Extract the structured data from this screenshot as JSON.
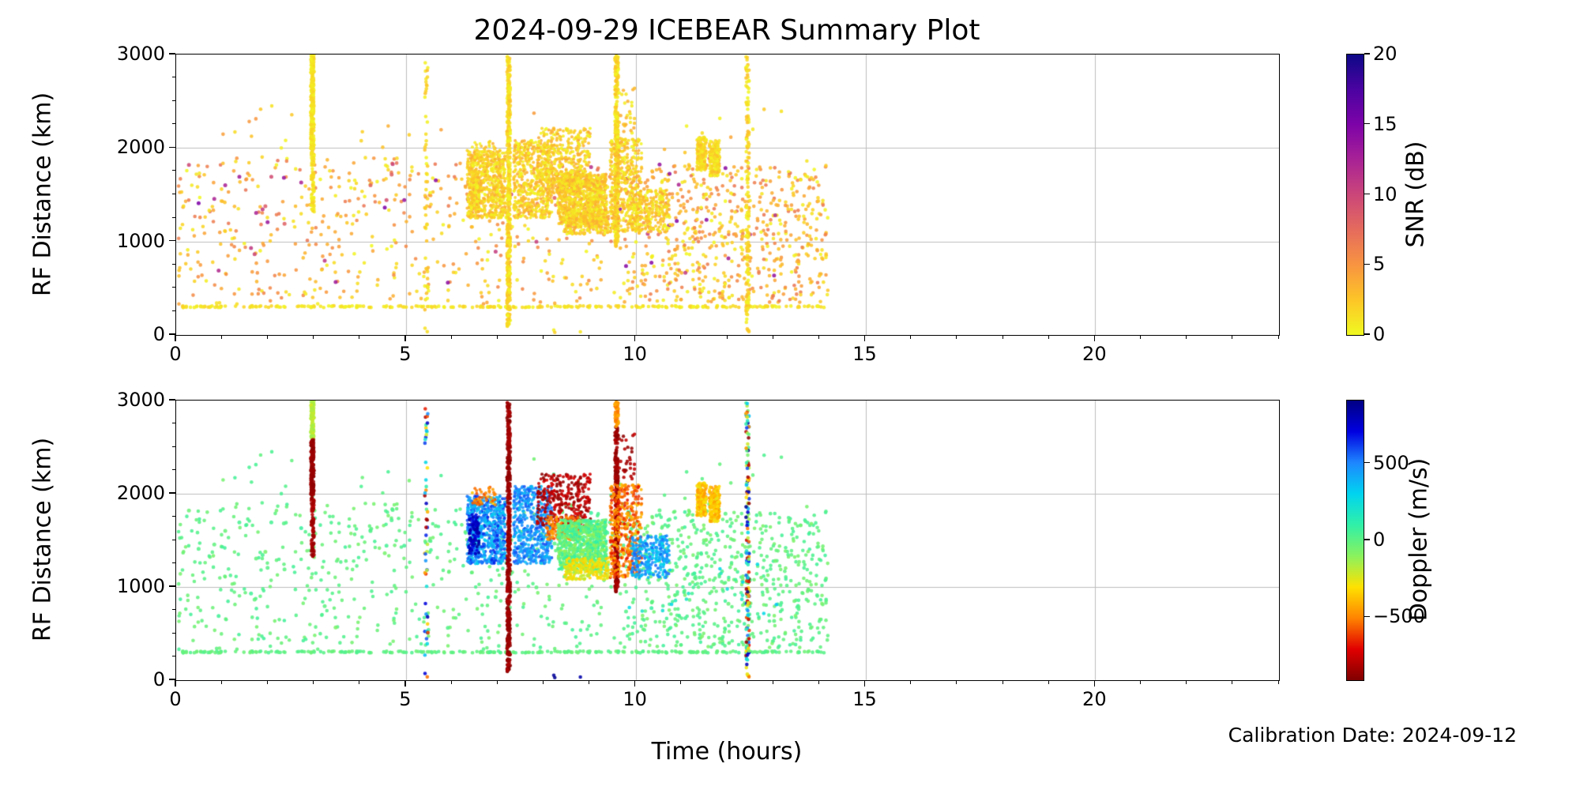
{
  "annotation": {
    "calibration": "Calibration Date: 2024-09-12"
  },
  "chart_data": {
    "type": "scatter",
    "title": "2024-09-29 ICEBEAR Summary Plot",
    "xlabel": "Time (hours)",
    "x_range": [
      0,
      24
    ],
    "x_ticks": [
      0,
      5,
      10,
      15,
      20
    ],
    "x_minor_step": 1,
    "grid": true,
    "seed": 20240929,
    "panels": [
      {
        "id": "snr",
        "ylabel": "RF Distance (km)",
        "y_range": [
          0,
          3000
        ],
        "y_ticks": [
          0,
          1000,
          2000,
          3000
        ],
        "y_minor_step": 250,
        "value_key": "snr",
        "colorbar": {
          "label": "SNR (dB)",
          "range": [
            0,
            20
          ],
          "ticks": [
            0,
            5,
            10,
            15,
            20
          ],
          "colormap": "plasma_r"
        }
      },
      {
        "id": "doppler",
        "ylabel": "RF Distance (km)",
        "y_range": [
          0,
          3000
        ],
        "y_ticks": [
          0,
          1000,
          2000,
          3000
        ],
        "y_minor_step": 250,
        "value_key": "dop",
        "colorbar": {
          "label": "Doppler (m/s)",
          "range": [
            -910,
            910
          ],
          "ticks": [
            -500,
            0,
            500
          ],
          "colormap": "jet_r"
        }
      }
    ],
    "colormaps": {
      "plasma_r": [
        "#f0f921",
        "#fdc527",
        "#f89441",
        "#e56b5d",
        "#cb4679",
        "#a82296",
        "#7d03a8",
        "#4b03a1",
        "#0d0887"
      ],
      "jet_r": [
        "#800000",
        "#e10000",
        "#ff8400",
        "#ffe100",
        "#8af25e",
        "#30f0a8",
        "#00d4f0",
        "#1e86ff",
        "#0000e0",
        "#000084"
      ]
    },
    "grid_color": "#bdbdbd",
    "point_groups": [
      {
        "name": "hband-300km",
        "t": [
          0.05,
          14.1
        ],
        "r": [
          293,
          312
        ],
        "n": 270,
        "size": 2.3,
        "snr": [
          0,
          2
        ],
        "dop": [
          -40,
          40
        ]
      },
      {
        "name": "bg-low",
        "t": [
          0.05,
          14.15
        ],
        "r": [
          330,
          980
        ],
        "n": 300,
        "size": 2.3,
        "snr": [
          0,
          6
        ],
        "dop": [
          -60,
          60
        ]
      },
      {
        "name": "bg-mid",
        "t": [
          0.05,
          14.15
        ],
        "r": [
          980,
          1900
        ],
        "n": 470,
        "size": 2.3,
        "snr": [
          0,
          7
        ],
        "dop": [
          -60,
          60
        ]
      },
      {
        "name": "bg-right-dense",
        "t": [
          9.8,
          14.2
        ],
        "r": [
          350,
          1850
        ],
        "n": 380,
        "size": 2.3,
        "snr": [
          0,
          7
        ],
        "dop": [
          -70,
          70
        ]
      },
      {
        "name": "bg-snr-outliers",
        "t": [
          0.2,
          14.1
        ],
        "r": [
          500,
          1900
        ],
        "n": 50,
        "size": 2.5,
        "snr": [
          8,
          15
        ],
        "dop": [
          -80,
          80
        ]
      },
      {
        "name": "bg-teal-dots",
        "t": [
          9.8,
          13.9
        ],
        "r": [
          700,
          1250
        ],
        "n": 16,
        "size": 2.3,
        "snr": [
          0,
          4
        ],
        "dop": [
          150,
          350
        ]
      },
      {
        "name": "bg-high",
        "t": [
          0.5,
          13.8
        ],
        "r": [
          1900,
          2450
        ],
        "n": 34,
        "size": 2.3,
        "snr": [
          0,
          5
        ],
        "dop": [
          -60,
          60
        ]
      },
      {
        "name": "bottom-edge-dots",
        "t": [
          6.9,
          9.3
        ],
        "r": [
          20,
          80
        ],
        "n": 3,
        "size": 2.3,
        "snr": [
          0,
          3
        ],
        "dop": [
          700,
          900
        ]
      },
      {
        "name": "streak-3h-top",
        "t": [
          2.93,
          3.0
        ],
        "r": [
          2580,
          2995
        ],
        "n": 120,
        "size": 2.2,
        "snr": [
          0,
          2
        ],
        "dop": [
          -230,
          -130
        ]
      },
      {
        "name": "streak-3h-mid",
        "t": [
          2.93,
          3.0
        ],
        "r": [
          1990,
          2580
        ],
        "n": 170,
        "size": 2.2,
        "snr": [
          0,
          2
        ],
        "dop": [
          -890,
          -820
        ]
      },
      {
        "name": "streak-3h-low",
        "t": [
          2.94,
          3.0
        ],
        "r": [
          1310,
          1960
        ],
        "n": 80,
        "size": 2.2,
        "snr": [
          0,
          2
        ],
        "dop": [
          -890,
          -790
        ]
      },
      {
        "name": "streak-5.4h",
        "t": [
          5.41,
          5.48
        ],
        "r": [
          30,
          2950
        ],
        "n": 52,
        "size": 2.3,
        "snr": [
          0,
          3
        ],
        "dop": [
          -900,
          900
        ]
      },
      {
        "name": "streak-7.3h",
        "t": [
          7.2,
          7.27
        ],
        "r": [
          60,
          2985
        ],
        "n": 430,
        "size": 2.3,
        "snr": [
          0,
          3
        ],
        "dop": [
          -895,
          -815
        ]
      },
      {
        "name": "streak-9.6h-main",
        "t": [
          9.55,
          9.62
        ],
        "r": [
          950,
          2720
        ],
        "n": 300,
        "size": 2.3,
        "snr": [
          0,
          3
        ],
        "dop": [
          -890,
          -800
        ]
      },
      {
        "name": "streak-9.6h-top",
        "t": [
          9.55,
          9.62
        ],
        "r": [
          2720,
          2995
        ],
        "n": 60,
        "size": 2.3,
        "snr": [
          0,
          3
        ],
        "dop": [
          -540,
          -400
        ]
      },
      {
        "name": "streak-12.4h",
        "t": [
          12.4,
          12.47
        ],
        "r": [
          30,
          2985
        ],
        "n": 150,
        "size": 2.3,
        "snr": [
          0,
          3
        ],
        "dop": [
          -900,
          900
        ]
      },
      {
        "name": "cluster-A-blue",
        "t": [
          6.33,
          7.16
        ],
        "r": [
          1250,
          1980
        ],
        "n": 650,
        "size": 2.0,
        "snr": [
          0,
          4
        ],
        "dop": [
          300,
          660
        ],
        "cols": 12
      },
      {
        "name": "cluster-A-navy",
        "t": [
          6.36,
          6.6
        ],
        "r": [
          1350,
          1780
        ],
        "n": 90,
        "size": 2.0,
        "snr": [
          0,
          4
        ],
        "dop": [
          680,
          880
        ],
        "cols": 4
      },
      {
        "name": "cluster-A-topred",
        "t": [
          6.42,
          6.95
        ],
        "r": [
          1880,
          2070
        ],
        "n": 45,
        "size": 2.0,
        "snr": [
          0,
          4
        ],
        "dop": [
          -620,
          -350
        ],
        "cols": 6
      },
      {
        "name": "cluster-B-skyblue",
        "t": [
          7.34,
          8.18
        ],
        "r": [
          1250,
          2080
        ],
        "n": 520,
        "size": 2.0,
        "snr": [
          0,
          4
        ],
        "dop": [
          340,
          600
        ],
        "cols": 12
      },
      {
        "name": "cluster-C-darkred",
        "t": [
          7.85,
          9.02
        ],
        "r": [
          1650,
          2210
        ],
        "n": 330,
        "size": 2.0,
        "snr": [
          0,
          4
        ],
        "dop": [
          -890,
          -700
        ],
        "cols": 12
      },
      {
        "name": "cluster-C-orange",
        "t": [
          8.05,
          8.78
        ],
        "r": [
          1500,
          1760
        ],
        "n": 140,
        "size": 2.0,
        "snr": [
          0,
          4
        ],
        "dop": [
          -610,
          -420
        ],
        "cols": 8
      },
      {
        "name": "cluster-D-green",
        "t": [
          8.3,
          9.37
        ],
        "r": [
          1180,
          1720
        ],
        "n": 900,
        "size": 2.0,
        "snr": [
          0,
          4
        ],
        "dop": [
          -130,
          110
        ],
        "cols": 16
      },
      {
        "name": "cluster-D-yellow",
        "t": [
          8.45,
          9.42
        ],
        "r": [
          1080,
          1310
        ],
        "n": 210,
        "size": 2.0,
        "snr": [
          0,
          4
        ],
        "dop": [
          -360,
          -180
        ],
        "cols": 12
      },
      {
        "name": "cluster-E-orange",
        "t": [
          9.44,
          10.14
        ],
        "r": [
          1100,
          2100
        ],
        "n": 420,
        "size": 2.0,
        "snr": [
          0,
          4
        ],
        "dop": [
          -690,
          -380
        ],
        "cols": 10
      },
      {
        "name": "cluster-E-cyan",
        "t": [
          9.9,
          10.75
        ],
        "r": [
          1100,
          1550
        ],
        "n": 260,
        "size": 2.0,
        "snr": [
          0,
          4
        ],
        "dop": [
          280,
          560
        ],
        "cols": 10
      },
      {
        "name": "cluster-E-maroon-top",
        "t": [
          9.62,
          10.0
        ],
        "r": [
          2150,
          2650
        ],
        "n": 28,
        "size": 2.2,
        "snr": [
          0,
          4
        ],
        "dop": [
          -880,
          -760
        ]
      },
      {
        "name": "cluster-G",
        "t": [
          11.33,
          11.54
        ],
        "r": [
          1760,
          2120
        ],
        "n": 170,
        "size": 2.1,
        "snr": [
          0,
          3
        ],
        "dop": [
          -470,
          -260
        ],
        "cols": 3
      },
      {
        "name": "cluster-H",
        "t": [
          11.6,
          11.83
        ],
        "r": [
          1700,
          2080
        ],
        "n": 170,
        "size": 2.1,
        "snr": [
          0,
          3
        ],
        "dop": [
          -470,
          -260
        ],
        "cols": 3
      }
    ]
  }
}
